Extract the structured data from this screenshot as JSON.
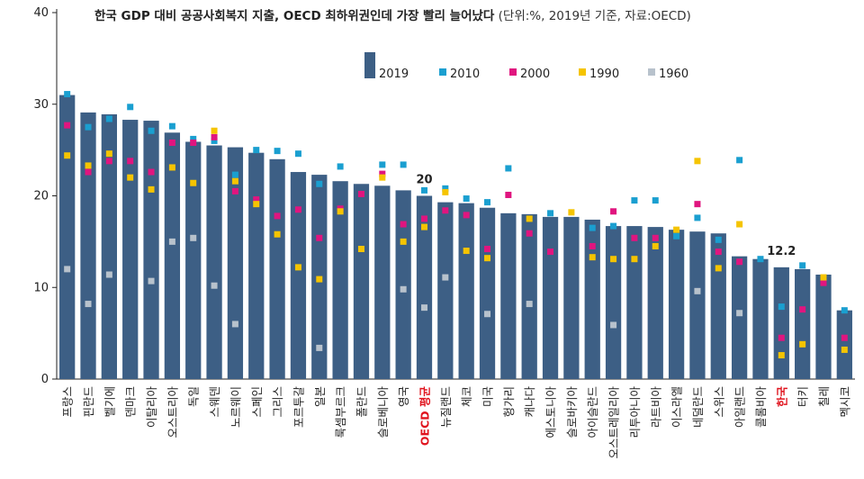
{
  "chart_data": {
    "type": "bar",
    "title": "한국 GDP 대비 공공사회복지 지출, OECD 최하위권인데 가장 빨리 늘어났다",
    "subtitle": "(단위:%, 2019년 기준, 자료:OECD)",
    "ylim": [
      0,
      40
    ],
    "yticks": [
      0,
      10,
      20,
      30,
      40
    ],
    "grid": false,
    "legend_position": "top-center",
    "highlight_categories": [
      "OECD 평균",
      "한국"
    ],
    "categories": [
      "프랑스",
      "핀란드",
      "벨기에",
      "덴마크",
      "이탈리아",
      "오스트리아",
      "독일",
      "스웨덴",
      "노르웨이",
      "스페인",
      "그리스",
      "포르투갈",
      "일본",
      "룩셈부르크",
      "폴란드",
      "슬로베니아",
      "영국",
      "OECD 평균",
      "뉴질랜드",
      "체코",
      "미국",
      "헝가리",
      "캐나다",
      "에스토니아",
      "슬로바키아",
      "아이슬란드",
      "오스트레일리아",
      "리투아니아",
      "라트비아",
      "이스라엘",
      "네덜란드",
      "스위스",
      "아일랜드",
      "콜롬비아",
      "한국",
      "터키",
      "칠레",
      "멕시코"
    ],
    "series": [
      {
        "name": "2019",
        "marker": "bar",
        "color": "#3d5f85",
        "values": [
          31.0,
          29.1,
          28.9,
          28.3,
          28.2,
          26.9,
          25.9,
          25.5,
          25.3,
          24.7,
          24.0,
          22.6,
          22.3,
          21.6,
          21.3,
          21.1,
          20.6,
          20.0,
          19.3,
          19.2,
          18.7,
          18.1,
          18.0,
          17.7,
          17.7,
          17.4,
          16.7,
          16.7,
          16.6,
          16.3,
          16.1,
          15.9,
          13.4,
          13.1,
          12.2,
          12.0,
          11.4,
          7.5
        ]
      },
      {
        "name": "2010",
        "marker": "square",
        "color": "#1a9fd0",
        "values": [
          31.1,
          27.5,
          28.4,
          29.7,
          27.1,
          27.6,
          26.2,
          26.0,
          22.3,
          25.0,
          24.9,
          24.6,
          21.3,
          23.2,
          null,
          23.4,
          23.4,
          20.6,
          20.8,
          19.7,
          19.3,
          23.0,
          null,
          18.1,
          null,
          16.5,
          16.7,
          19.5,
          19.5,
          15.6,
          17.6,
          15.2,
          23.9,
          13.1,
          7.9,
          12.4,
          null,
          7.5
        ]
      },
      {
        "name": "2000",
        "marker": "square",
        "color": "#e0157f",
        "values": [
          27.7,
          22.6,
          23.8,
          23.8,
          22.6,
          25.8,
          25.8,
          26.4,
          20.5,
          19.6,
          17.8,
          18.5,
          15.4,
          18.6,
          20.2,
          22.4,
          16.9,
          17.5,
          18.4,
          17.9,
          14.2,
          20.1,
          15.9,
          13.9,
          null,
          14.5,
          18.3,
          15.4,
          15.4,
          null,
          19.1,
          13.9,
          12.8,
          null,
          4.5,
          7.6,
          10.5,
          4.5
        ]
      },
      {
        "name": "1990",
        "marker": "square",
        "color": "#f5c400",
        "values": [
          24.4,
          23.3,
          24.6,
          22.0,
          20.7,
          23.1,
          21.4,
          27.1,
          21.6,
          19.1,
          15.8,
          12.2,
          10.9,
          18.3,
          14.2,
          22.0,
          15.0,
          16.6,
          20.4,
          14.0,
          13.2,
          null,
          17.5,
          null,
          18.2,
          13.3,
          13.1,
          13.1,
          14.5,
          16.3,
          23.8,
          12.1,
          16.9,
          null,
          2.6,
          3.8,
          11.1,
          3.2
        ]
      },
      {
        "name": "1960",
        "marker": "square",
        "color": "#b8c2cc",
        "values": [
          12.0,
          8.2,
          11.4,
          null,
          10.7,
          15.0,
          15.4,
          10.2,
          6.0,
          null,
          null,
          null,
          3.4,
          null,
          null,
          null,
          9.8,
          7.8,
          11.1,
          null,
          7.1,
          null,
          8.2,
          null,
          null,
          null,
          5.9,
          null,
          null,
          null,
          9.6,
          null,
          7.2,
          null,
          null,
          null,
          null,
          null
        ]
      }
    ],
    "data_labels": [
      {
        "category": "OECD 평균",
        "text": "20"
      },
      {
        "category": "한국",
        "text": "12.2"
      }
    ]
  }
}
